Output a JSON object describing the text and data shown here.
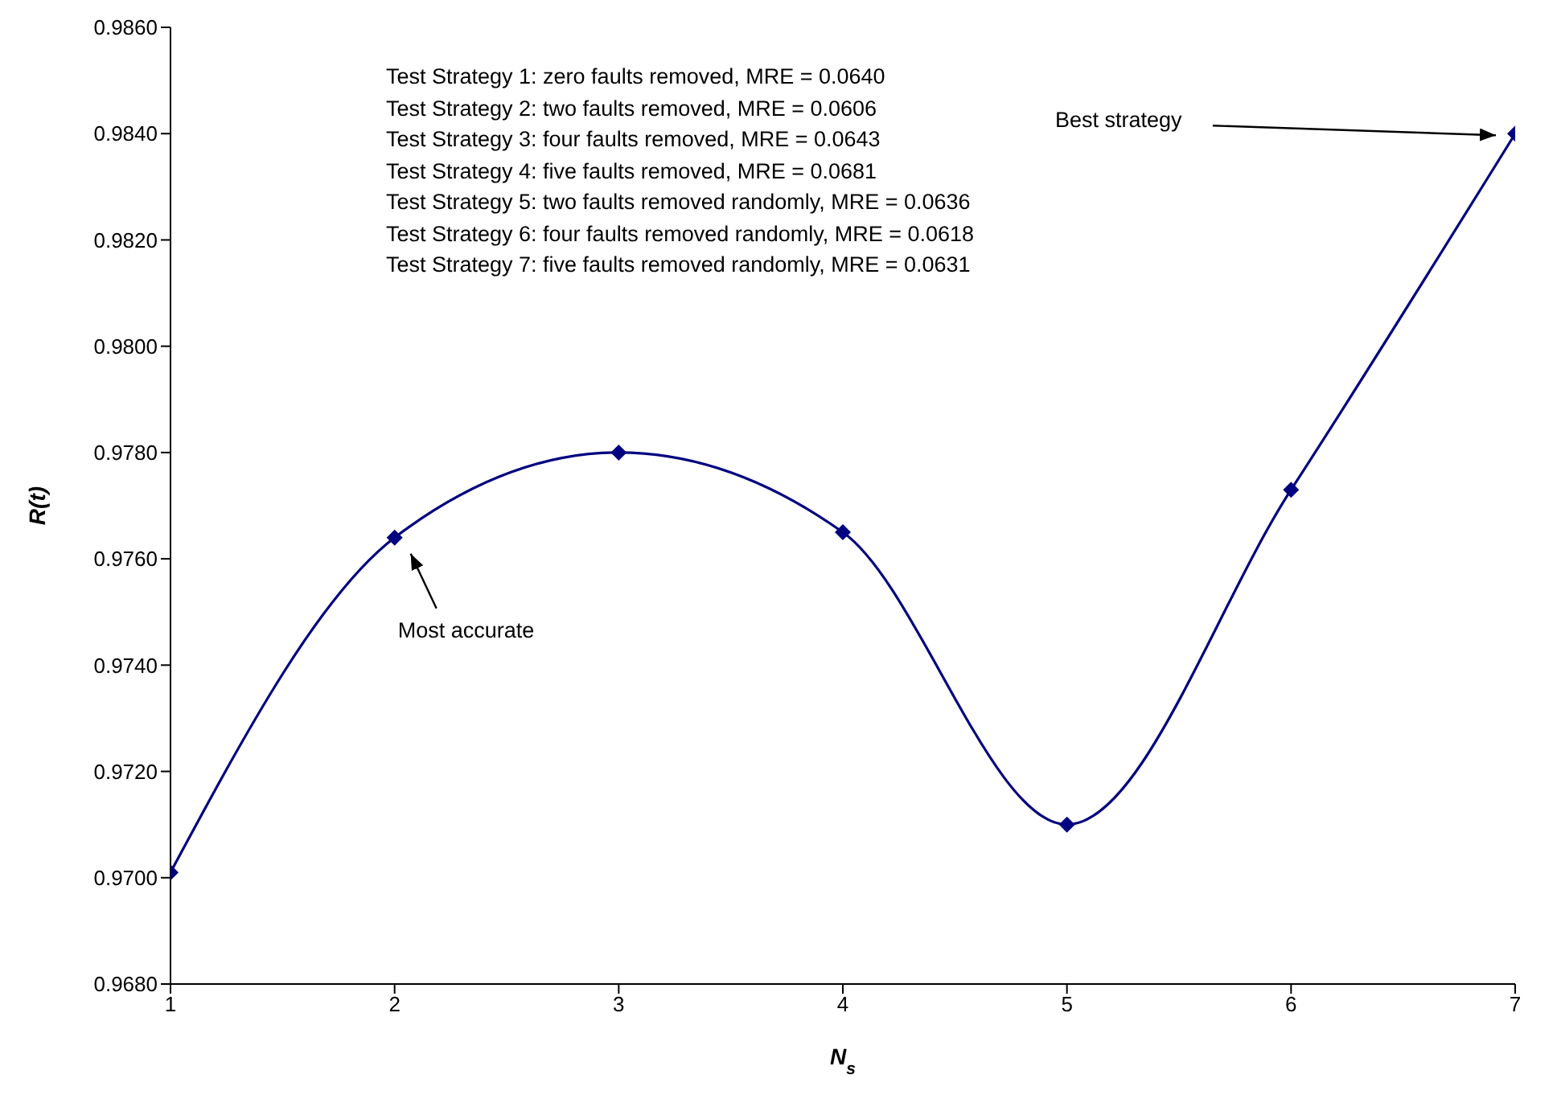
{
  "chart_data": {
    "type": "line",
    "xlabel": "N$_{s}$",
    "ylabel": "R(t)",
    "x": [
      1,
      2,
      3,
      4,
      5,
      6,
      7
    ],
    "series": [
      {
        "color": "#000080",
        "values": [
          0.9701,
          0.9764,
          0.978,
          0.9765,
          0.971,
          0.9773,
          0.984
        ]
      }
    ],
    "xlim": [
      1,
      7
    ],
    "xticks": [
      1,
      2,
      3,
      4,
      5,
      6,
      7
    ],
    "ylim": [
      0.968,
      0.986
    ],
    "yticks": [
      {
        "value": 0.968,
        "label": "0.9680"
      },
      {
        "value": 0.97,
        "label": "0.9700"
      },
      {
        "value": 0.972,
        "label": "0.9720"
      },
      {
        "value": 0.974,
        "label": "0.9740"
      },
      {
        "value": 0.976,
        "label": "0.9760"
      },
      {
        "value": 0.978,
        "label": "0.9780"
      },
      {
        "value": 0.98,
        "label": "0.9800"
      },
      {
        "value": 0.982,
        "label": "0.9820"
      },
      {
        "value": 0.984,
        "label": "0.9840"
      },
      {
        "value": 0.986,
        "label": "0.9860"
      }
    ],
    "grid": false,
    "legend": false,
    "marker": "diamond",
    "line_style": "solid",
    "annotations": [
      "Test Strategy 1: zero faults removed, MRE = 0.0640",
      "Test Strategy 2: two faults removed, MRE = 0.0606",
      "Test Strategy 3: four faults removed, MRE = 0.0643",
      "Test Strategy 4: five faults removed, MRE = 0.0681",
      "Test Strategy 5: two faults removed randomly, MRE = 0.0636",
      "Test Strategy 6: four faults removed randomly, MRE = 0.0618",
      "Test Strategy 7: five faults removed randomly, MRE = 0.0631",
      "Best strategy",
      "Most accurate"
    ]
  }
}
